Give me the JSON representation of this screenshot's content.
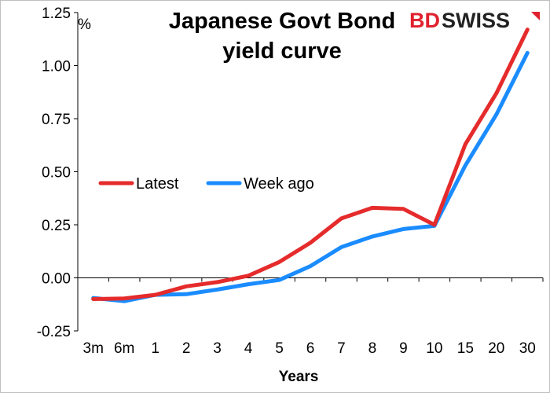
{
  "chart_data": {
    "type": "line",
    "title_lines": [
      "Japanese Govt Bond",
      "yield curve"
    ],
    "unit_label": "%",
    "xlabel": "Years",
    "categories": [
      "3m",
      "6m",
      "1",
      "2",
      "3",
      "4",
      "5",
      "6",
      "7",
      "8",
      "9",
      "10",
      "15",
      "20",
      "30"
    ],
    "ylim": [
      -0.25,
      1.25
    ],
    "yticks": [
      "1.25",
      "1.00",
      "0.75",
      "0.50",
      "0.25",
      "0.00",
      "-0.25"
    ],
    "ytick_values": [
      1.25,
      1.0,
      0.75,
      0.5,
      0.25,
      0.0,
      -0.25
    ],
    "grid": false,
    "legend_position": "left-middle",
    "series": [
      {
        "name": "Latest",
        "color": "#e52b2b",
        "values": [
          -0.1,
          -0.097,
          -0.08,
          -0.04,
          -0.02,
          0.01,
          0.075,
          0.165,
          0.28,
          0.33,
          0.325,
          0.25,
          0.63,
          0.87,
          1.17
        ]
      },
      {
        "name": "Week ago",
        "color": "#1a8cff",
        "values": [
          -0.095,
          -0.11,
          -0.08,
          -0.077,
          -0.055,
          -0.03,
          -0.01,
          0.055,
          0.145,
          0.195,
          0.23,
          0.245,
          0.53,
          0.77,
          1.06
        ]
      }
    ]
  },
  "logo": {
    "text_bd": "BD",
    "text_swiss": "SWISS",
    "icon": "bdswiss-logo",
    "color": "#e0202e"
  }
}
